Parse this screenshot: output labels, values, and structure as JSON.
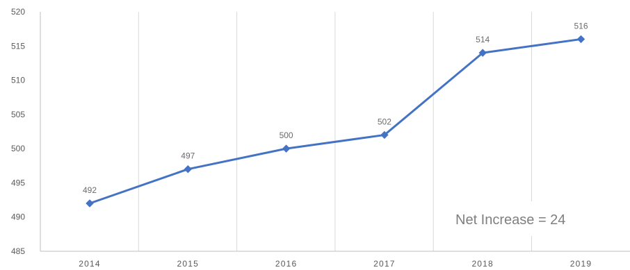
{
  "chart_data": {
    "type": "line",
    "categories": [
      "2014",
      "2015",
      "2016",
      "2017",
      "2018",
      "2019"
    ],
    "series": [
      {
        "values": [
          492,
          497,
          500,
          502,
          514,
          516
        ],
        "color": "#4472c4",
        "marker": "diamond"
      }
    ],
    "ylim": [
      485,
      520
    ],
    "yticks": [
      485,
      490,
      495,
      500,
      505,
      510,
      515,
      520
    ],
    "data_labels": [
      "492",
      "497",
      "500",
      "502",
      "514",
      "516"
    ],
    "annotation": "Net Increase = 24",
    "gridlines": "vertical",
    "colors": {
      "series": "#4472c4",
      "grid": "#d9d9d9",
      "axis": "#bfbfbf",
      "tick_text": "#595959",
      "annotation_text": "#7f7f7f"
    }
  }
}
